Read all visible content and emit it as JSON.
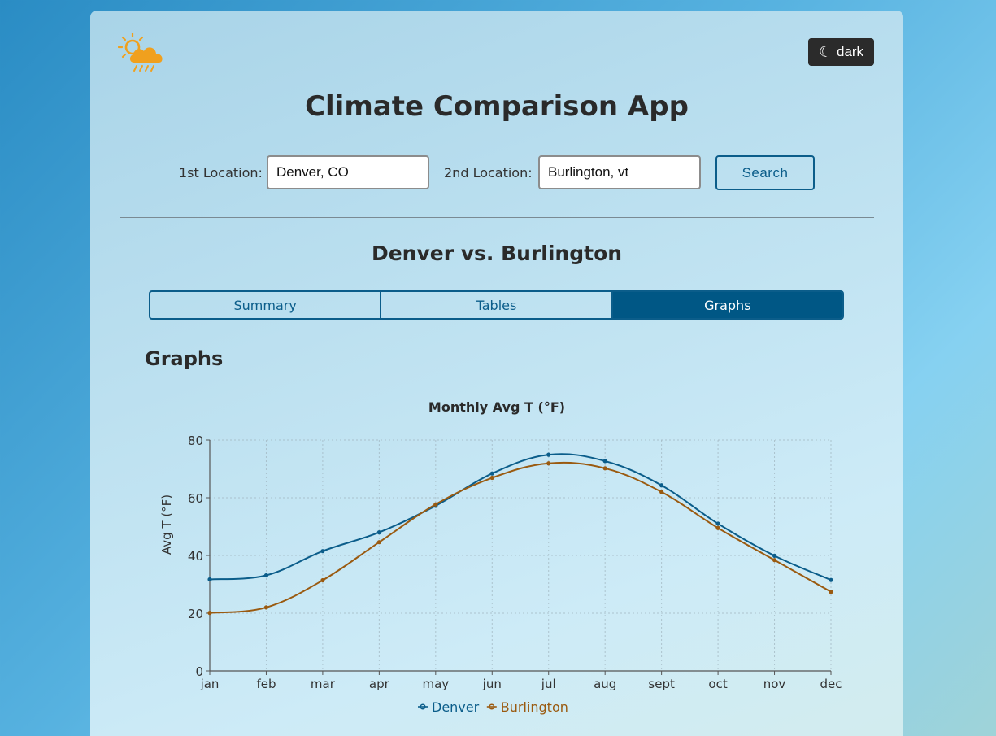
{
  "header": {
    "logo_icon": "sun-cloud-rain-icon",
    "dark_toggle_label": "dark",
    "dark_toggle_icon": "moon-icon",
    "app_title": "Climate Comparison App"
  },
  "search_form": {
    "location1_label": "1st Location:",
    "location1_value": "Denver, CO",
    "location2_label": "2nd Location:",
    "location2_value": "Burlington, vt",
    "search_label": "Search"
  },
  "comparison": {
    "title": "Denver vs. Burlington"
  },
  "tabs": [
    {
      "label": "Summary",
      "active": false
    },
    {
      "label": "Tables",
      "active": false
    },
    {
      "label": "Graphs",
      "active": true
    }
  ],
  "section_title": "Graphs",
  "colors": {
    "accent": "#005785",
    "denver": "#0b5d8a",
    "burlington": "#9a5a10",
    "logo": "#f0a01e"
  },
  "chart_data": {
    "type": "line",
    "title": "Monthly Avg T (°F)",
    "xlabel": "",
    "ylabel": "Avg T (°F)",
    "ylim": [
      0,
      80
    ],
    "yticks": [
      0,
      20,
      40,
      60,
      80
    ],
    "grid": true,
    "legend_placement": "bottom-center",
    "categories": [
      "jan",
      "feb",
      "mar",
      "apr",
      "may",
      "jun",
      "jul",
      "aug",
      "sept",
      "oct",
      "nov",
      "dec"
    ],
    "series": [
      {
        "name": "Denver",
        "color": "#0b5d8a",
        "values": [
          31.7,
          33.1,
          41.5,
          48.0,
          57.2,
          68.4,
          74.9,
          72.7,
          64.3,
          51.0,
          39.9,
          31.5
        ]
      },
      {
        "name": "Burlington",
        "color": "#9a5a10",
        "values": [
          20.1,
          22.0,
          31.4,
          44.6,
          57.7,
          66.9,
          71.9,
          70.2,
          62.0,
          49.5,
          38.4,
          27.4
        ]
      }
    ]
  }
}
